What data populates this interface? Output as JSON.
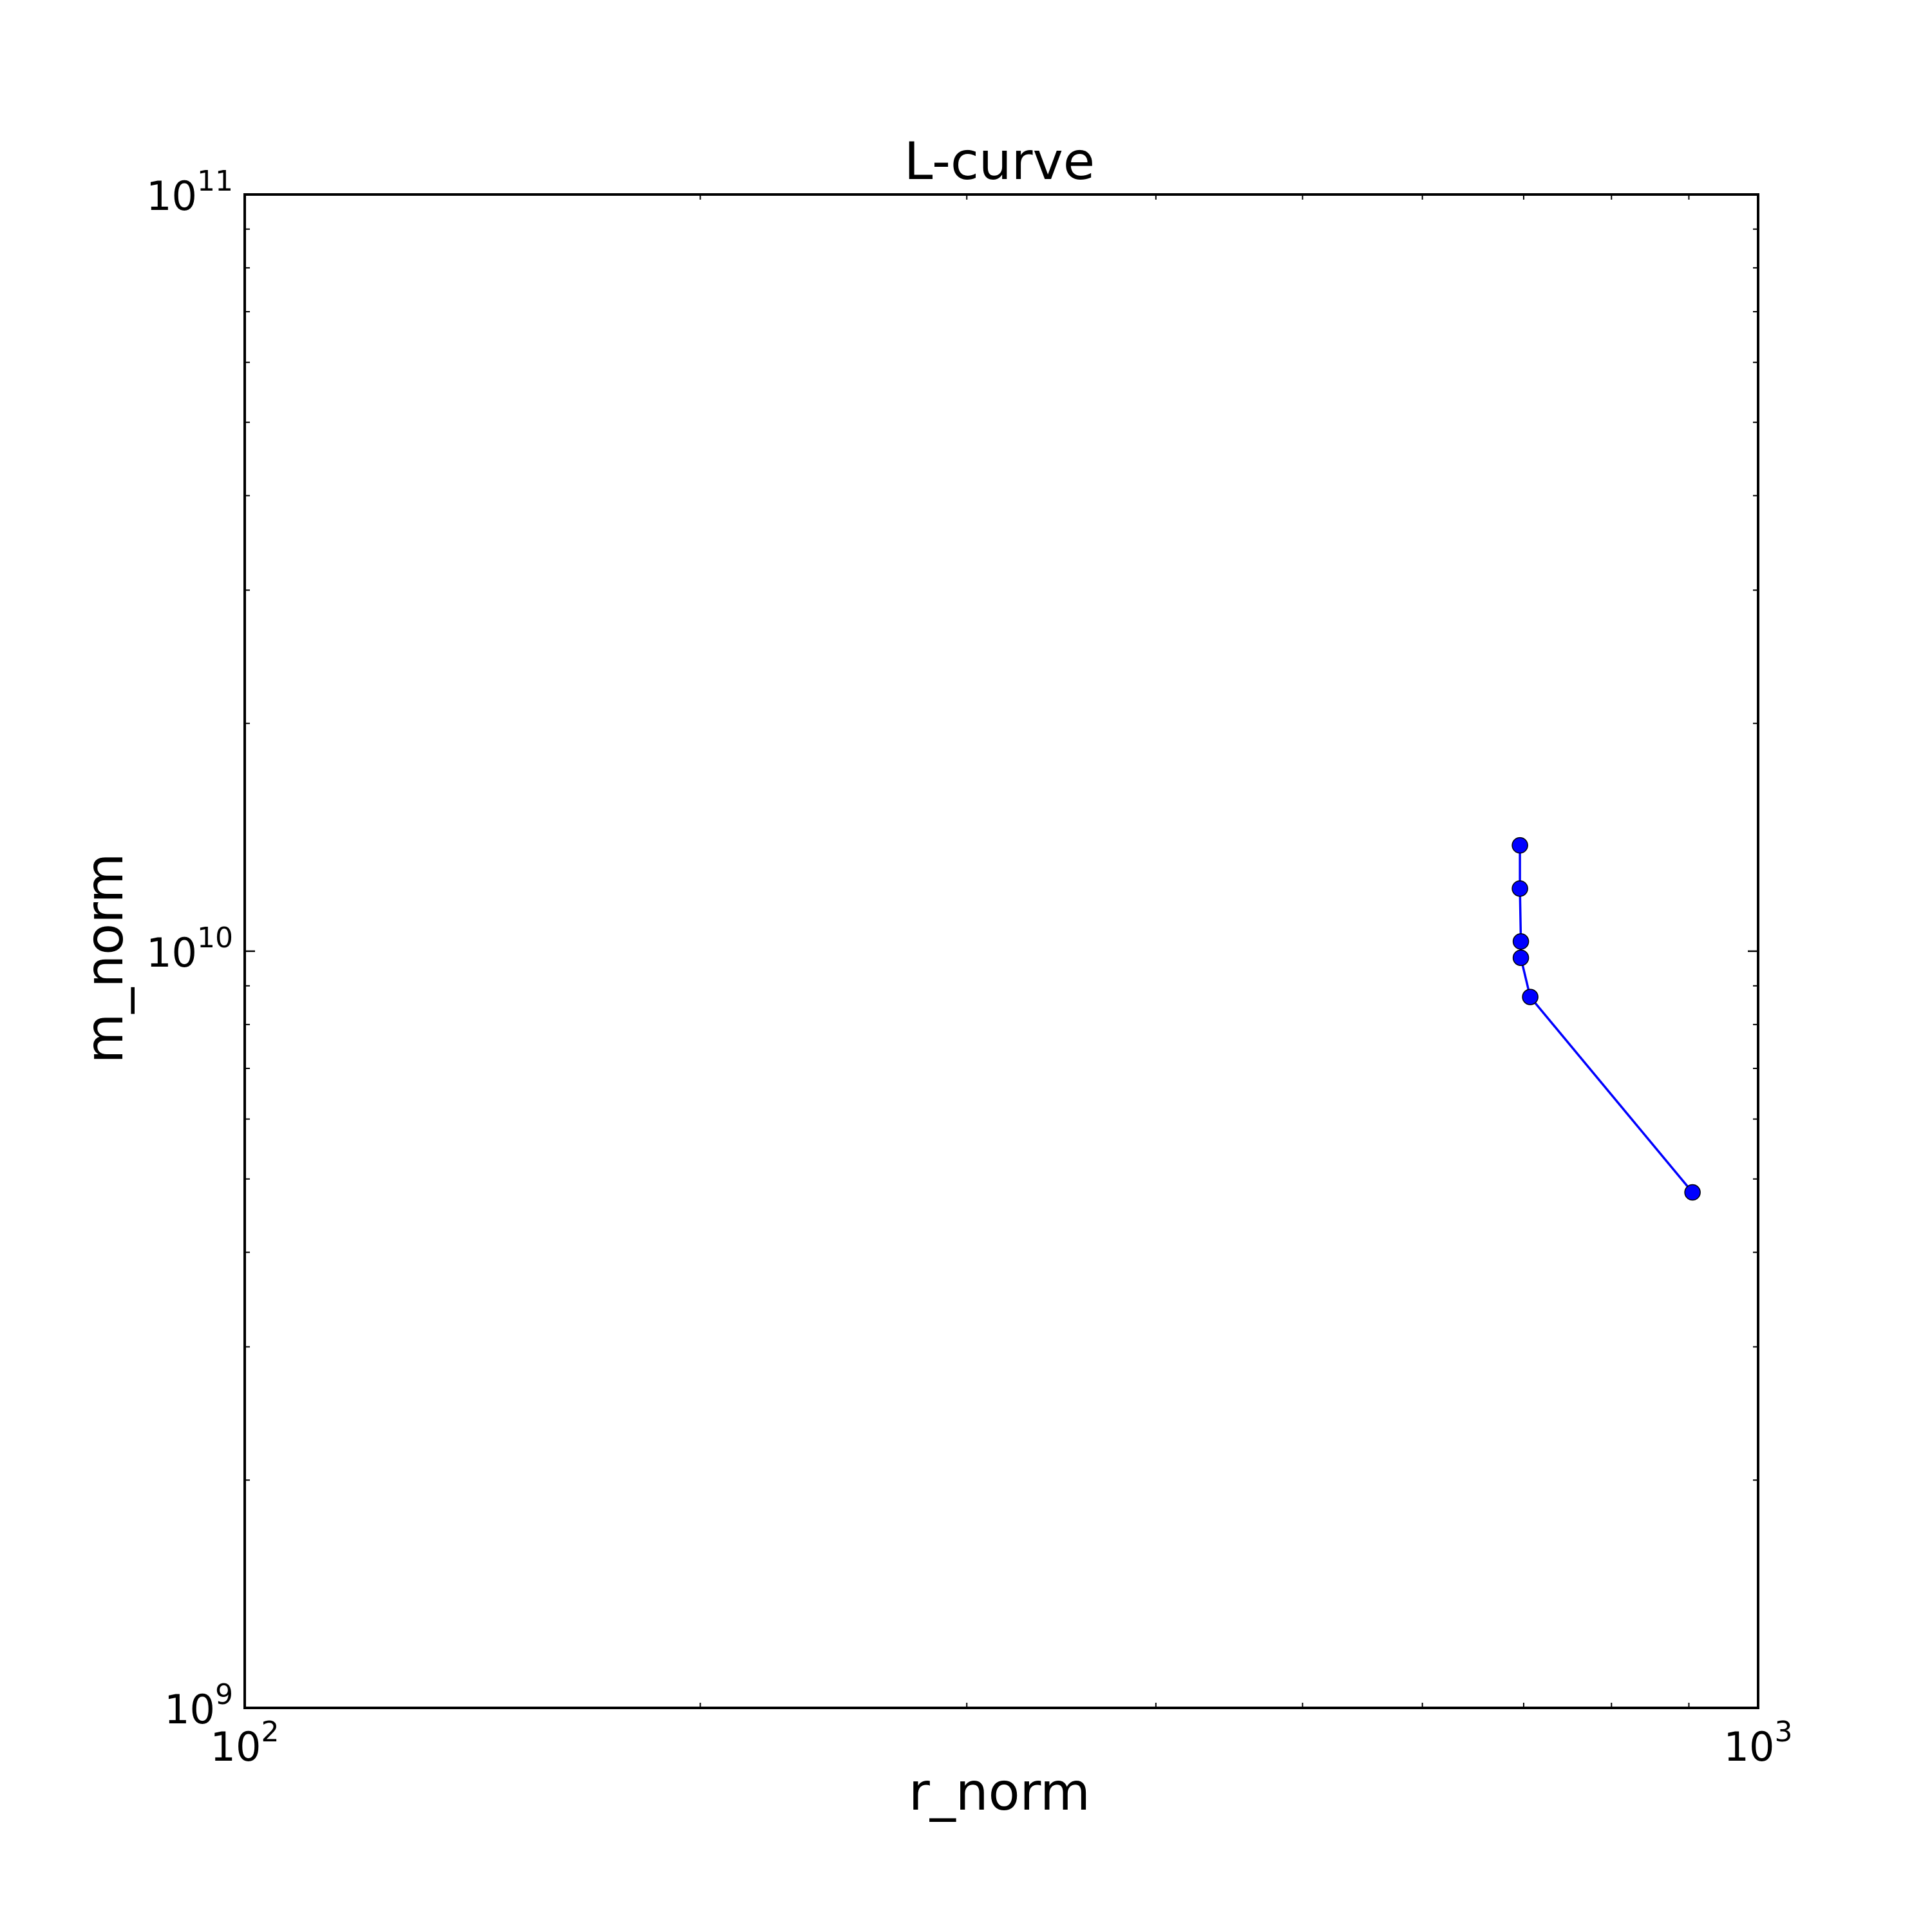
{
  "chart_data": {
    "type": "line",
    "title": "L-curve",
    "xlabel": "r_norm",
    "ylabel": "m_norm",
    "xscale": "log",
    "yscale": "log",
    "xlim": [
      100,
      1000
    ],
    "ylim": [
      1000000000,
      100000000000
    ],
    "x_ticks": [
      {
        "base": "10",
        "exp": "2",
        "value": 100
      },
      {
        "base": "10",
        "exp": "3",
        "value": 1000
      }
    ],
    "y_ticks": [
      {
        "base": "10",
        "exp": "9",
        "value": 1000000000
      },
      {
        "base": "10",
        "exp": "10",
        "value": 10000000000
      },
      {
        "base": "10",
        "exp": "11",
        "value": 100000000000
      }
    ],
    "grid": false,
    "series": [
      {
        "color": "#0000ff",
        "marker": "circle",
        "x": [
          696,
          696,
          697,
          697,
          707,
          905
        ],
        "y": [
          13800000000,
          12100000000,
          10300000000,
          9800000000,
          8700000000,
          4800000000
        ]
      }
    ]
  }
}
